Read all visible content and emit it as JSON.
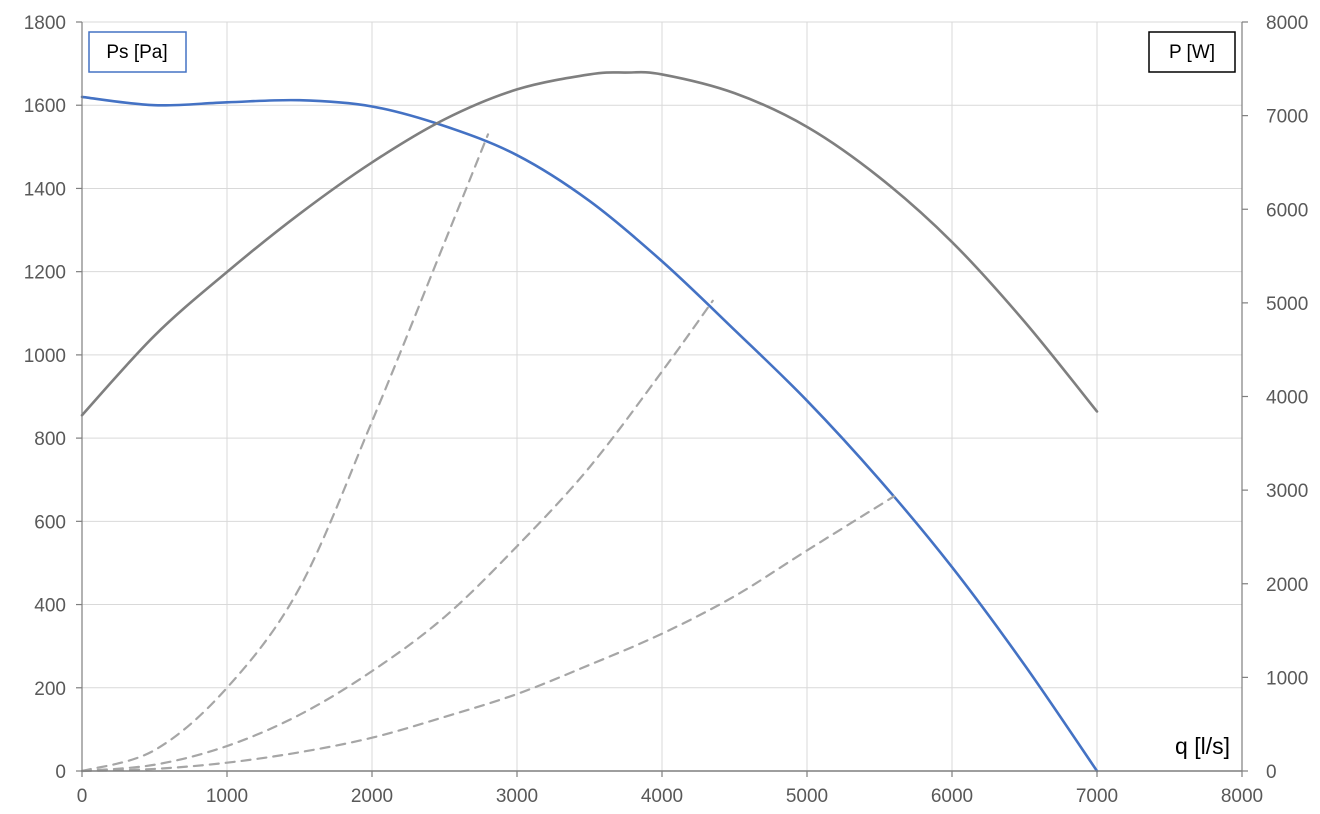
{
  "chart_data": {
    "type": "line",
    "x_axis": {
      "label": "q [l/s]",
      "range": [
        0,
        8000
      ],
      "ticks": [
        0,
        1000,
        2000,
        3000,
        4000,
        5000,
        6000,
        7000,
        8000
      ]
    },
    "y_left": {
      "label": "Ps [Pa]",
      "range": [
        0,
        1800
      ],
      "ticks": [
        0,
        200,
        400,
        600,
        800,
        1000,
        1200,
        1400,
        1600,
        1800
      ]
    },
    "y_right": {
      "label": "P [W]",
      "range": [
        0,
        8000
      ],
      "ticks": [
        0,
        1000,
        2000,
        3000,
        4000,
        5000,
        6000,
        7000,
        8000
      ]
    },
    "grid": "vertical",
    "series": [
      {
        "axis": "left",
        "color": "#4472c4",
        "style": "solid",
        "x": [
          0,
          500,
          1000,
          1500,
          2000,
          2500,
          3000,
          3500,
          4000,
          4500,
          5000,
          5500,
          6000,
          6500,
          7000
        ],
        "y": [
          1620,
          1600,
          1607,
          1612,
          1597,
          1550,
          1480,
          1370,
          1225,
          1060,
          890,
          700,
          490,
          255,
          0
        ]
      },
      {
        "axis": "right",
        "color": "#7f7f7f",
        "style": "solid",
        "x": [
          0,
          500,
          1000,
          1500,
          2000,
          2500,
          3000,
          3500,
          3750,
          4000,
          4500,
          5000,
          5500,
          6000,
          6500,
          7000
        ],
        "y": [
          3800,
          4650,
          5330,
          5950,
          6500,
          6960,
          7280,
          7440,
          7460,
          7440,
          7240,
          6880,
          6340,
          5650,
          4800,
          3840
        ]
      },
      {
        "axis": "left",
        "color": "#a6a6a6",
        "style": "dashed",
        "x": [
          0,
          500,
          1000,
          1500,
          2000,
          2500,
          2800
        ],
        "y": [
          0,
          50,
          200,
          440,
          840,
          1270,
          1530
        ]
      },
      {
        "axis": "left",
        "color": "#a6a6a6",
        "style": "dashed",
        "x": [
          0,
          500,
          1000,
          1500,
          2000,
          2500,
          3000,
          3500,
          4000,
          4350
        ],
        "y": [
          0,
          15,
          60,
          135,
          240,
          370,
          540,
          730,
          960,
          1130
        ]
      },
      {
        "axis": "left",
        "color": "#a6a6a6",
        "style": "dashed",
        "x": [
          0,
          500,
          1000,
          1500,
          2000,
          2500,
          3000,
          3500,
          4000,
          4500,
          5000,
          5600
        ],
        "y": [
          0,
          5,
          20,
          45,
          80,
          130,
          185,
          255,
          330,
          420,
          530,
          660
        ]
      }
    ]
  }
}
